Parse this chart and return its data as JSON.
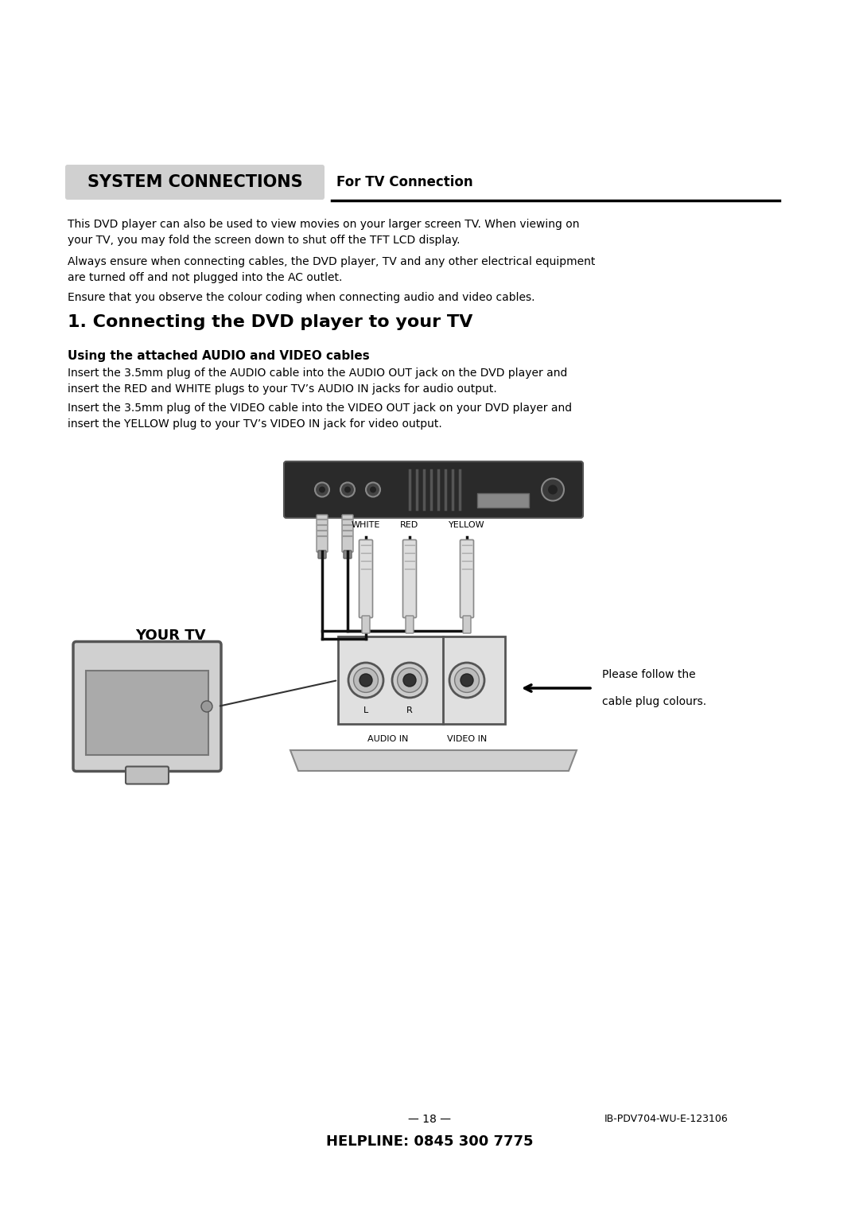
{
  "bg_color": "#ffffff",
  "text_color": "#000000",
  "header_box_text": "SYSTEM CONNECTIONS",
  "header_box_color": "#d0d0d0",
  "header_right_text": "For TV Connection",
  "para1": "This DVD player can also be used to view movies on your larger screen TV. When viewing on\nyour TV, you may fold the screen down to shut off the TFT LCD display.",
  "para2": "Always ensure when connecting cables, the DVD player, TV and any other electrical equipment\nare turned off and not plugged into the AC outlet.",
  "para3": "Ensure that you observe the colour coding when connecting audio and video cables.",
  "section_title": "1. Connecting the DVD player to your TV",
  "subsection_title": "Using the attached AUDIO and VIDEO cables",
  "body1": "Insert the 3.5mm plug of the AUDIO cable into the AUDIO OUT jack on the DVD player and\ninsert the RED and WHITE plugs to your TV’s AUDIO IN jacks for audio output.",
  "body2": "Insert the 3.5mm plug of the VIDEO cable into the VIDEO OUT jack on your DVD player and\ninsert the YELLOW plug to your TV’s VIDEO IN jack for video output.",
  "your_tv_label": "YOUR TV",
  "white_label": "WHITE",
  "red_label": "RED",
  "yellow_label": "YELLOW",
  "audio_in_label": "AUDIO IN",
  "video_in_label": "VIDEO IN",
  "l_label": "L",
  "r_label": "R",
  "arrow_text1": "Please follow the",
  "arrow_text2": "cable plug colours.",
  "page_number": "— 18 —",
  "doc_code": "IB-PDV704-WU-E-123106",
  "helpline": "HELPLINE: 0845 300 7775"
}
